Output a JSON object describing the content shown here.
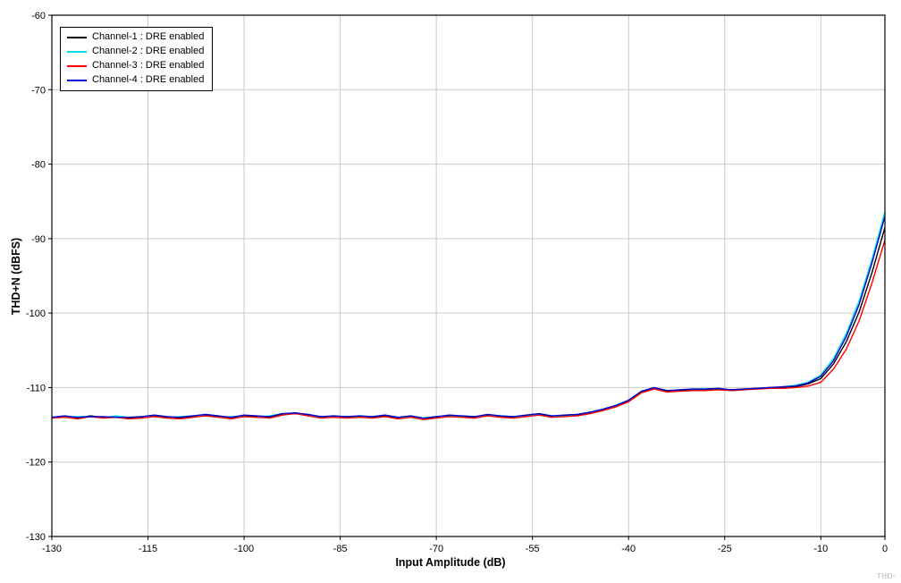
{
  "watermark": "THD-",
  "chart_data": {
    "type": "line",
    "title": "",
    "xlabel": "Input Amplitude (dB)",
    "ylabel": "THD+N (dBFS)",
    "xlim": [
      -130,
      0
    ],
    "ylim": [
      -130,
      -60
    ],
    "x_ticks": [
      -130,
      -115,
      -100,
      -85,
      -70,
      -55,
      -40,
      -25,
      -10,
      0
    ],
    "y_ticks": [
      -60,
      -70,
      -80,
      -90,
      -100,
      -110,
      -120,
      -130
    ],
    "grid": true,
    "grid_color": "#c9c9c9",
    "border_color": "#000000",
    "legend_position": "top-left",
    "x": [
      -130,
      -128,
      -126,
      -124,
      -122,
      -120,
      -118,
      -116,
      -114,
      -112,
      -110,
      -108,
      -106,
      -104,
      -102,
      -100,
      -98,
      -96,
      -94,
      -92,
      -90,
      -88,
      -86,
      -84,
      -82,
      -80,
      -78,
      -76,
      -74,
      -72,
      -70,
      -68,
      -66,
      -64,
      -62,
      -60,
      -58,
      -56,
      -54,
      -52,
      -50,
      -48,
      -46,
      -44,
      -42,
      -40,
      -38,
      -36,
      -34,
      -32,
      -30,
      -28,
      -26,
      -24,
      -22,
      -20,
      -18,
      -16,
      -14,
      -12,
      -10,
      -8,
      -6,
      -4,
      -2,
      0
    ],
    "series": [
      {
        "name": "Channel-1 : DRE enabled",
        "color": "#000000",
        "values": [
          -114.0,
          -113.9,
          -114.1,
          -113.8,
          -114.0,
          -113.9,
          -114.1,
          -114.0,
          -113.8,
          -114.0,
          -114.1,
          -113.9,
          -113.7,
          -113.9,
          -114.1,
          -113.8,
          -113.9,
          -114.0,
          -113.6,
          -113.4,
          -113.7,
          -114.0,
          -113.9,
          -114.0,
          -113.9,
          -114.0,
          -113.8,
          -114.1,
          -113.9,
          -114.2,
          -114.0,
          -113.8,
          -113.9,
          -114.0,
          -113.7,
          -113.9,
          -114.0,
          -113.8,
          -113.6,
          -113.9,
          -113.8,
          -113.7,
          -113.4,
          -113.0,
          -112.5,
          -111.8,
          -110.6,
          -110.1,
          -110.5,
          -110.4,
          -110.3,
          -110.3,
          -110.2,
          -110.3,
          -110.2,
          -110.1,
          -110.0,
          -110.0,
          -109.9,
          -109.5,
          -108.8,
          -106.8,
          -103.8,
          -99.8,
          -94.5,
          -88.5
        ]
      },
      {
        "name": "Channel-2 : DRE enabled",
        "color": "#00dbe8",
        "values": [
          -113.9,
          -114.0,
          -113.9,
          -113.9,
          -114.1,
          -113.8,
          -114.0,
          -113.9,
          -113.9,
          -114.1,
          -113.9,
          -113.8,
          -113.8,
          -114.0,
          -113.9,
          -113.9,
          -114.0,
          -113.8,
          -113.5,
          -113.5,
          -113.8,
          -113.9,
          -114.0,
          -113.9,
          -114.0,
          -113.9,
          -113.7,
          -114.0,
          -114.0,
          -114.1,
          -113.9,
          -113.9,
          -113.8,
          -113.9,
          -113.8,
          -113.8,
          -113.9,
          -113.9,
          -113.5,
          -113.8,
          -113.9,
          -113.6,
          -113.3,
          -113.1,
          -112.4,
          -111.7,
          -110.5,
          -110.0,
          -110.4,
          -110.3,
          -110.2,
          -110.2,
          -110.1,
          -110.4,
          -110.3,
          -110.2,
          -110.1,
          -109.9,
          -109.7,
          -109.3,
          -108.3,
          -106.1,
          -102.7,
          -98.3,
          -92.7,
          -86.4
        ]
      },
      {
        "name": "Channel-3 : DRE enabled",
        "color": "#ff0000",
        "values": [
          -114.1,
          -114.0,
          -114.2,
          -113.9,
          -114.1,
          -114.0,
          -114.2,
          -114.1,
          -113.9,
          -114.1,
          -114.2,
          -114.0,
          -113.8,
          -114.0,
          -114.2,
          -113.9,
          -114.0,
          -114.1,
          -113.7,
          -113.5,
          -113.8,
          -114.1,
          -114.0,
          -114.1,
          -114.0,
          -114.1,
          -113.9,
          -114.2,
          -114.0,
          -114.3,
          -114.1,
          -113.9,
          -114.0,
          -114.1,
          -113.8,
          -114.0,
          -114.1,
          -113.9,
          -113.7,
          -114.0,
          -113.9,
          -113.8,
          -113.5,
          -113.1,
          -112.6,
          -111.9,
          -110.7,
          -110.2,
          -110.6,
          -110.5,
          -110.4,
          -110.4,
          -110.3,
          -110.4,
          -110.3,
          -110.2,
          -110.1,
          -110.1,
          -110.0,
          -109.8,
          -109.3,
          -107.5,
          -104.8,
          -101.0,
          -95.9,
          -90.2
        ]
      },
      {
        "name": "Channel-4 : DRE enabled",
        "color": "#0000cc",
        "values": [
          -114.0,
          -113.8,
          -114.0,
          -113.9,
          -113.9,
          -114.0,
          -114.0,
          -113.9,
          -113.7,
          -113.9,
          -114.0,
          -113.8,
          -113.6,
          -113.8,
          -114.0,
          -113.7,
          -113.8,
          -113.9,
          -113.5,
          -113.4,
          -113.6,
          -113.9,
          -113.8,
          -113.9,
          -113.8,
          -113.9,
          -113.7,
          -114.0,
          -113.8,
          -114.1,
          -113.9,
          -113.7,
          -113.8,
          -113.9,
          -113.6,
          -113.8,
          -113.9,
          -113.7,
          -113.5,
          -113.8,
          -113.7,
          -113.6,
          -113.3,
          -112.9,
          -112.4,
          -111.7,
          -110.5,
          -110.0,
          -110.4,
          -110.3,
          -110.2,
          -110.2,
          -110.1,
          -110.3,
          -110.2,
          -110.1,
          -110.0,
          -109.9,
          -109.8,
          -109.4,
          -108.5,
          -106.4,
          -103.1,
          -98.8,
          -93.2,
          -87.0
        ]
      }
    ]
  }
}
